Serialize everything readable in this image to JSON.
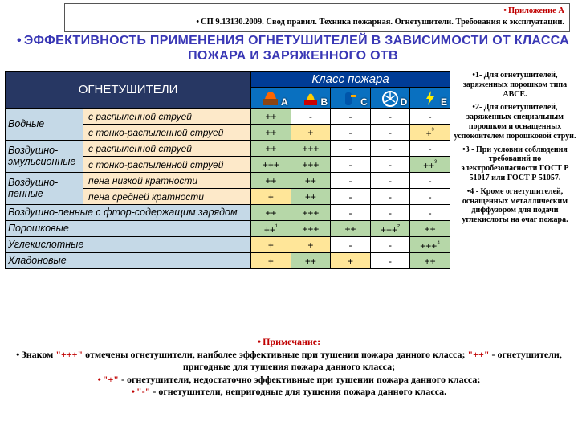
{
  "header": {
    "line1": "Приложение А",
    "line2": "СП 9.13130.2009. Свод правил. Техника пожарная. Огнетушители. Требования к эксплуатации."
  },
  "title": "ЭФФЕКТИВНОСТЬ ПРИМЕНЕНИЯ ОГНЕТУШИТЕЛЕЙ В ЗАВИСИМОСТИ ОТ КЛАССА ПОЖАРА И ЗАРЯЖЕННОГО ОТВ",
  "table": {
    "ext_header": "ОГНЕТУШИТЕЛИ",
    "fire_class_header": "Класс пожара",
    "fire_letters": [
      "A",
      "B",
      "C",
      "D",
      "E"
    ],
    "rows": [
      {
        "type": "Водные",
        "subs": [
          {
            "name": "с распыленной струей",
            "v": [
              "++",
              "-",
              "-",
              "-",
              "-"
            ],
            "c": [
              "g",
              "w",
              "w",
              "w",
              "w"
            ]
          },
          {
            "name": "с тонко-распыленной струей",
            "v": [
              "++",
              "+",
              "-",
              "-",
              "+³"
            ],
            "c": [
              "g",
              "y",
              "w",
              "w",
              "y"
            ]
          }
        ]
      },
      {
        "type": "Воздушно-эмульсионные",
        "subs": [
          {
            "name": "с распыленной струей",
            "v": [
              "++",
              "+++",
              "-",
              "-",
              "-"
            ],
            "c": [
              "g",
              "g",
              "w",
              "w",
              "w"
            ]
          },
          {
            "name": "с тонко-распыленной струей",
            "v": [
              "+++",
              "+++",
              "-",
              "-",
              "++³"
            ],
            "c": [
              "g",
              "g",
              "w",
              "w",
              "g"
            ]
          }
        ]
      },
      {
        "type": "Воздушно-пенные",
        "subs": [
          {
            "name": "пена низкой кратности",
            "v": [
              "++",
              "++",
              "-",
              "-",
              "-"
            ],
            "c": [
              "g",
              "g",
              "w",
              "w",
              "w"
            ]
          },
          {
            "name": "пена средней кратности",
            "v": [
              "+",
              "++",
              "-",
              "-",
              "-"
            ],
            "c": [
              "y",
              "g",
              "w",
              "w",
              "w"
            ]
          }
        ]
      },
      {
        "type": "Воздушно-пенные с фтор-содержащим зарядом",
        "span": true,
        "v": [
          "++",
          "+++",
          "-",
          "-",
          "-"
        ],
        "c": [
          "g",
          "g",
          "w",
          "w",
          "w"
        ]
      },
      {
        "type": "Порошковые",
        "span": true,
        "v": [
          "++¹",
          "+++",
          "++",
          "+++²",
          "++"
        ],
        "c": [
          "g",
          "g",
          "g",
          "g",
          "g"
        ]
      },
      {
        "type": "Углекислотные",
        "span": true,
        "v": [
          "+",
          "+",
          "-",
          "-",
          "+++⁴"
        ],
        "c": [
          "y",
          "y",
          "w",
          "w",
          "g"
        ]
      },
      {
        "type": "Хладоновые",
        "span": true,
        "v": [
          "+",
          "++",
          "+",
          "-",
          "++"
        ],
        "c": [
          "y",
          "g",
          "y",
          "w",
          "g"
        ]
      }
    ]
  },
  "side_notes": [
    "1- Для огнетушителей, заряженных порошком типа АВСЕ.",
    "2- Для огнетушителей, заряженных специальным порошком и оснащенных успокоителем порошковой струи.",
    "3 - При условии соблюдения требований по электробезопасности ГОСТ Р 51017 или ГОСТ Р 51057.",
    "4 - Кроме огнетушителей, оснащенных металлическим диффузором для подачи углекислоты на очаг пожара."
  ],
  "footnote": {
    "title": "Примечание:",
    "l1a": "Знаком ",
    "q1": "\"+++\"",
    "l1b": " отмечены огнетушители, наиболее эффективные при тушении пожара данного класса; ",
    "q2": "\"++\"",
    "l1c": " - огнетушители, пригодные для тушения пожара данного класса;",
    "q3": "\"+\"",
    "l2a": " - огнетушители, недостаточно эффективные при тушении пожара данного класса;",
    "q4": "\"-\"",
    "l3a": " - огнетушители, непригодные для тушения пожара данного класса."
  }
}
